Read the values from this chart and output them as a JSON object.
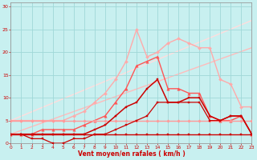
{
  "xlabel": "Vent moyen/en rafales ( km/h )",
  "ylabel": "",
  "xlim": [
    0,
    23
  ],
  "ylim": [
    0,
    31
  ],
  "yticks": [
    0,
    5,
    10,
    15,
    20,
    25,
    30
  ],
  "xticks": [
    0,
    1,
    2,
    3,
    4,
    5,
    6,
    7,
    8,
    9,
    10,
    11,
    12,
    13,
    14,
    15,
    16,
    17,
    18,
    19,
    20,
    21,
    22,
    23
  ],
  "bg_color": "#c8f0f0",
  "grid_color": "#a0d8d8",
  "lines": [
    {
      "x": [
        0,
        1,
        2,
        3,
        4,
        5,
        6,
        7,
        8,
        9,
        10,
        11,
        12,
        13,
        14,
        15,
        16,
        17,
        18,
        19,
        20,
        21,
        22,
        23
      ],
      "y": [
        2,
        2,
        2,
        2,
        2,
        2,
        2,
        2,
        2,
        2,
        2,
        2,
        2,
        2,
        2,
        2,
        2,
        2,
        2,
        2,
        2,
        2,
        2,
        2
      ],
      "color": "#cc0000",
      "lw": 1.0,
      "marker": "s",
      "ms": 1.8,
      "zorder": 5
    },
    {
      "x": [
        0,
        1,
        2,
        3,
        4,
        5,
        6,
        7,
        8,
        9,
        10,
        11,
        12,
        13,
        14,
        15,
        16,
        17,
        18,
        19,
        20,
        21,
        22,
        23
      ],
      "y": [
        5,
        5,
        5,
        5,
        5,
        5,
        5,
        5,
        5,
        5,
        5,
        5,
        5,
        5,
        5,
        5,
        5,
        5,
        5,
        5,
        5,
        5,
        5,
        5
      ],
      "color": "#ff9999",
      "lw": 1.0,
      "marker": "D",
      "ms": 1.8,
      "zorder": 4
    },
    {
      "x": [
        0,
        23
      ],
      "y": [
        2,
        21
      ],
      "color": "#ffbbbb",
      "lw": 1.0,
      "marker": null,
      "ms": 0,
      "zorder": 1
    },
    {
      "x": [
        0,
        23
      ],
      "y": [
        5,
        27
      ],
      "color": "#ffdddd",
      "lw": 1.0,
      "marker": null,
      "ms": 0,
      "zorder": 1
    },
    {
      "x": [
        0,
        1,
        2,
        3,
        4,
        5,
        6,
        7,
        8,
        9,
        10,
        11,
        12,
        13,
        14,
        15,
        16,
        17,
        18,
        19,
        20,
        21,
        22,
        23
      ],
      "y": [
        2,
        2,
        1,
        1,
        0,
        0,
        1,
        1,
        2,
        2,
        3,
        4,
        5,
        6,
        9,
        9,
        9,
        9,
        9,
        5,
        5,
        6,
        6,
        2
      ],
      "color": "#cc0000",
      "lw": 0.9,
      "marker": "s",
      "ms": 1.8,
      "zorder": 6
    },
    {
      "x": [
        0,
        1,
        2,
        3,
        4,
        5,
        6,
        7,
        8,
        9,
        10,
        11,
        12,
        13,
        14,
        15,
        16,
        17,
        18,
        19,
        20,
        21,
        22,
        23
      ],
      "y": [
        2,
        2,
        2,
        2,
        2,
        2,
        2,
        2,
        3,
        4,
        6,
        8,
        9,
        12,
        14,
        9,
        9,
        10,
        10,
        6,
        5,
        6,
        6,
        2
      ],
      "color": "#cc0000",
      "lw": 1.1,
      "marker": "s",
      "ms": 2.0,
      "zorder": 7
    },
    {
      "x": [
        0,
        1,
        2,
        3,
        4,
        5,
        6,
        7,
        8,
        9,
        10,
        11,
        12,
        13,
        14,
        15,
        16,
        17,
        18,
        19,
        20,
        21,
        22,
        23
      ],
      "y": [
        2,
        2,
        2,
        3,
        3,
        3,
        3,
        4,
        5,
        6,
        9,
        12,
        17,
        18,
        19,
        12,
        12,
        11,
        11,
        6,
        5,
        5,
        6,
        2
      ],
      "color": "#ff5555",
      "lw": 1.0,
      "marker": "^",
      "ms": 2.5,
      "zorder": 3
    },
    {
      "x": [
        0,
        1,
        2,
        3,
        4,
        5,
        6,
        7,
        8,
        9,
        10,
        11,
        12,
        13,
        14,
        15,
        16,
        17,
        18,
        19,
        20,
        21,
        22,
        23
      ],
      "y": [
        5,
        5,
        5,
        5,
        5,
        5,
        6,
        7,
        9,
        11,
        14,
        18,
        25,
        19,
        20,
        22,
        23,
        22,
        21,
        21,
        14,
        13,
        8,
        8
      ],
      "color": "#ffaaaa",
      "lw": 1.0,
      "marker": "D",
      "ms": 2.0,
      "zorder": 2
    }
  ]
}
